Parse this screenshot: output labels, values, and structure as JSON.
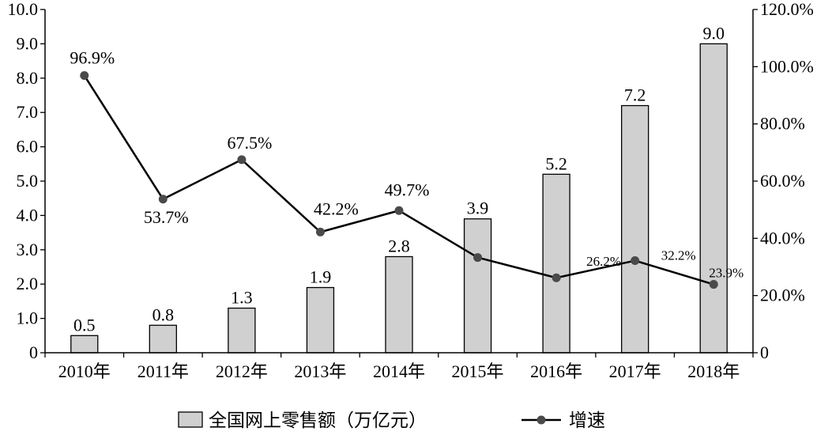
{
  "chart_data": {
    "type": "bar+line",
    "categories": [
      "2010年",
      "2011年",
      "2012年",
      "2013年",
      "2014年",
      "2015年",
      "2016年",
      "2017年",
      "2018年"
    ],
    "series": [
      {
        "name": "全国网上零售额（万亿元）",
        "type": "bar",
        "axis": "left",
        "values": [
          0.5,
          0.8,
          1.3,
          1.9,
          2.8,
          3.9,
          5.2,
          7.2,
          9.0
        ],
        "labels": [
          "0.5",
          "0.8",
          "1.3",
          "1.9",
          "2.8",
          "3.9",
          "5.2",
          "7.2",
          "9.0"
        ],
        "color": "#d0d0d0"
      },
      {
        "name": "增速",
        "type": "line",
        "axis": "right",
        "values": [
          96.9,
          53.7,
          67.5,
          42.2,
          49.7,
          33.3,
          26.2,
          32.2,
          23.9
        ],
        "labels": [
          "96.9%",
          "53.7%",
          "67.5%",
          "42.2%",
          "49.7%",
          "",
          "26.2%",
          "32.2%",
          "23.9%"
        ],
        "color": "#000000",
        "marker_color": "#4a4a4a"
      }
    ],
    "y_left": {
      "range": [
        0,
        10
      ],
      "ticks": [
        0,
        1,
        2,
        3,
        4,
        5,
        6,
        7,
        8,
        9,
        10
      ],
      "tick_labels": [
        "0",
        "1.0",
        "2.0",
        "3.0",
        "4.0",
        "5.0",
        "6.0",
        "7.0",
        "8.0",
        "9.0",
        "10.0"
      ]
    },
    "y_right": {
      "range": [
        0,
        120
      ],
      "ticks": [
        0,
        20,
        40,
        60,
        80,
        100,
        120
      ],
      "tick_labels": [
        "0",
        "20.0%",
        "40.0%",
        "60.0%",
        "80.0%",
        "100.0%",
        "120.0%"
      ]
    },
    "grid": false,
    "legend_position": "bottom"
  }
}
